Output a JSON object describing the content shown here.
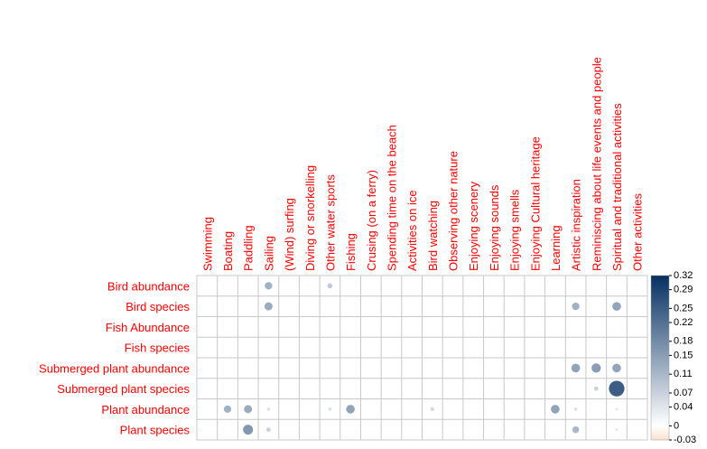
{
  "chart_data": {
    "type": "corrplot",
    "rows": [
      "Bird abundance",
      "Bird species",
      "Fish Abundance",
      "Fish species",
      "Submerged plant abundance",
      "Submerged plant species",
      "Plant abundance",
      "Plant species"
    ],
    "columns": [
      "Swimming",
      "Boating",
      "Paddling",
      "Sailing",
      "(Wind) surfing",
      "Diving or snorkelling",
      "Other water sports",
      "Fishing",
      "Crusing (on a ferry)",
      "Spending time on the beach",
      "Activities on ice",
      "Bird watching",
      "Observing other nature",
      "Enjoying scenery",
      "Enjoying sounds",
      "Enjoying smells",
      "Enjoying Cultural heritage",
      "Learning",
      "Artistic inspiration",
      "Reminiscing about life events and people",
      "Spiritual and traditional activities",
      "Other activities"
    ],
    "values": [
      [
        0,
        0,
        0,
        0.12,
        0,
        0.02,
        0.08,
        0,
        0,
        0,
        0,
        0,
        0,
        0,
        0,
        0,
        0,
        0,
        0,
        0,
        0,
        0.02
      ],
      [
        0,
        0,
        0,
        0.13,
        0,
        0.01,
        0.01,
        0,
        0,
        0,
        0,
        0,
        0,
        0,
        0,
        0,
        0,
        0,
        0.12,
        0,
        0.14,
        0.01
      ],
      [
        0,
        0,
        0,
        0,
        0,
        0,
        0,
        0,
        0,
        0,
        0,
        0,
        0,
        0,
        0,
        0,
        0,
        0,
        0,
        0,
        0,
        0
      ],
      [
        0,
        0,
        0,
        0,
        0,
        0,
        0,
        0,
        0,
        0,
        0,
        0,
        0,
        0,
        0,
        0,
        0,
        0,
        0,
        0,
        0,
        0
      ],
      [
        0,
        0,
        0,
        0,
        0,
        0,
        0,
        0,
        0,
        0,
        0,
        0,
        0,
        0,
        0,
        0,
        0,
        0,
        0.14,
        0.15,
        0.14,
        0
      ],
      [
        0,
        0,
        0,
        0,
        0,
        0,
        0,
        0,
        0,
        0,
        0,
        0,
        0,
        0,
        0,
        0,
        0,
        0,
        0,
        0.07,
        0.25,
        0
      ],
      [
        0,
        0.12,
        0.13,
        0.05,
        0.02,
        0.02,
        0.05,
        0.14,
        -0.01,
        0,
        0,
        0.06,
        0,
        0,
        0,
        0,
        0,
        0.14,
        0.05,
        0.02,
        0.04,
        0.01
      ],
      [
        0,
        0,
        0.16,
        0.07,
        0,
        0.01,
        0,
        0,
        0.01,
        0,
        0,
        0,
        0,
        0,
        0,
        0,
        0,
        0,
        0.11,
        0,
        0.04,
        0
      ]
    ],
    "clim": [
      -0.03,
      0.32
    ],
    "cticks": [
      0.32,
      0.29,
      0.25,
      0.22,
      0.18,
      0.15,
      0.11,
      0.07,
      0.04,
      0,
      -0.03
    ],
    "colors": [
      "#fbe0cf",
      "#ffffff",
      "#053061"
    ]
  }
}
